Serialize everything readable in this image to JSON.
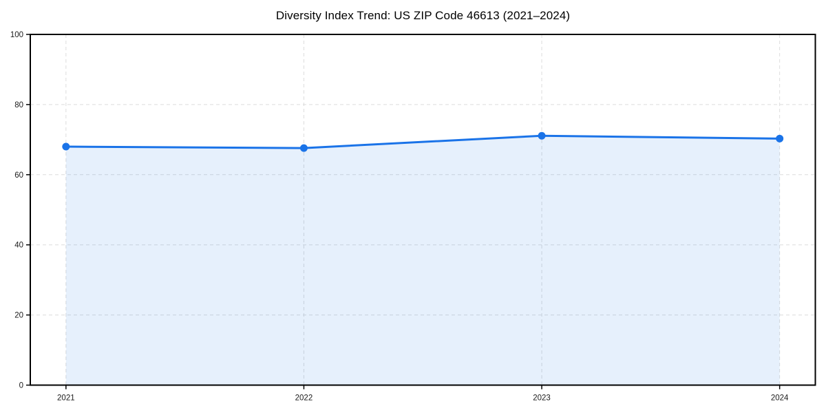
{
  "chart_data": {
    "type": "area",
    "title": "Diversity Index Trend: US ZIP Code 46613 (2021–2024)",
    "x": [
      "2021",
      "2022",
      "2023",
      "2024"
    ],
    "series": [
      {
        "name": "Diversity Index",
        "values": [
          68.0,
          67.6,
          71.1,
          70.3
        ]
      }
    ],
    "xlabel": "",
    "ylabel": "",
    "ylim": [
      0,
      100
    ],
    "yticks": [
      0,
      20,
      40,
      60,
      80,
      100
    ],
    "grid": true,
    "grid_style": "dashed",
    "legend": "none",
    "colors": {
      "line": "#1a73e8",
      "marker": "#1a73e8",
      "fill_opacity": 0.11,
      "grid": "#dcdcdc",
      "spine": "#000000",
      "text": "#000000",
      "background": "#ffffff"
    }
  }
}
